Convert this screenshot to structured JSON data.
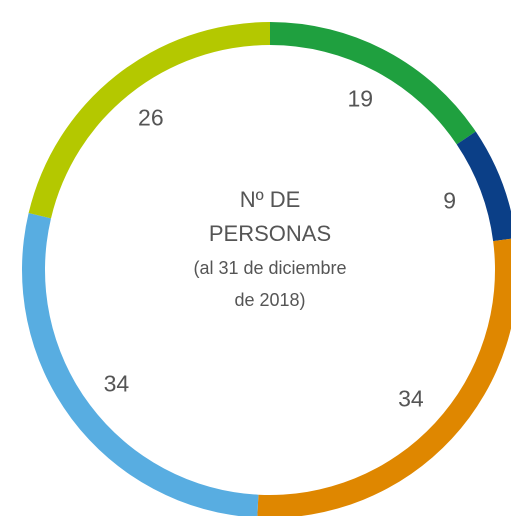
{
  "chart_data": {
    "type": "donut",
    "center_label": [
      "Nº DE",
      "PERSONAS",
      "(al 31 de diciembre",
      "de 2018)"
    ],
    "values": [
      19,
      9,
      34,
      34,
      26
    ],
    "colors": [
      "#1fa03f",
      "#0b3f87",
      "#df8700",
      "#58ade1",
      "#b4c800"
    ]
  }
}
